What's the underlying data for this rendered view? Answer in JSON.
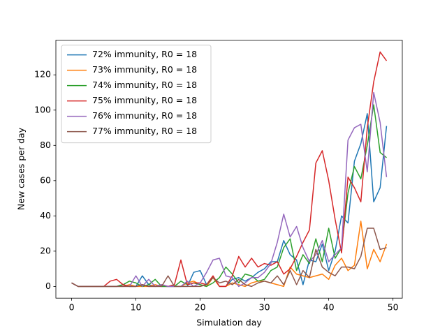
{
  "chart_data": {
    "type": "line",
    "xlabel": "Simulation day",
    "ylabel": "New cases per day",
    "x": [
      0,
      1,
      2,
      3,
      4,
      5,
      6,
      7,
      8,
      9,
      10,
      11,
      12,
      13,
      14,
      15,
      16,
      17,
      18,
      19,
      20,
      21,
      22,
      23,
      24,
      25,
      26,
      27,
      28,
      29,
      30,
      31,
      32,
      33,
      34,
      35,
      36,
      37,
      38,
      39,
      40,
      41,
      42,
      43,
      44,
      45,
      46,
      47,
      48,
      49
    ],
    "series": [
      {
        "name": "72% immunity, R0 = 18",
        "color": "#1f77b4",
        "values": [
          2,
          0,
          0,
          0,
          0,
          0,
          0,
          0,
          1,
          0,
          0,
          6,
          1,
          0,
          0,
          0,
          0,
          0,
          0,
          8,
          9,
          1,
          5,
          0,
          0,
          4,
          5,
          3,
          5,
          8,
          10,
          14,
          14,
          26,
          18,
          15,
          1,
          15,
          14,
          24,
          9,
          20,
          40,
          36,
          71,
          81,
          98,
          48,
          56,
          91
        ]
      },
      {
        "name": "73% immunity, R0 = 18",
        "color": "#ff7f0e",
        "values": [
          2,
          0,
          0,
          0,
          0,
          0,
          0,
          0,
          0,
          1,
          0,
          0,
          0,
          1,
          0,
          0,
          0,
          0,
          2,
          3,
          1,
          0,
          5,
          0,
          0,
          2,
          1,
          0,
          2,
          3,
          3,
          2,
          1,
          0,
          11,
          7,
          6,
          5,
          6,
          7,
          4,
          12,
          16,
          9,
          12,
          37,
          10,
          21,
          14,
          24
        ]
      },
      {
        "name": "74% immunity, R0 = 18",
        "color": "#2ca02c",
        "values": [
          2,
          0,
          0,
          0,
          0,
          0,
          0,
          0,
          1,
          3,
          2,
          0,
          1,
          4,
          0,
          0,
          0,
          3,
          1,
          2,
          1,
          0,
          2,
          5,
          11,
          7,
          2,
          7,
          6,
          3,
          4,
          9,
          11,
          22,
          27,
          9,
          18,
          13,
          27,
          14,
          33,
          16,
          22,
          53,
          68,
          61,
          80,
          103,
          76,
          73
        ]
      },
      {
        "name": "75% immunity, R0 = 18",
        "color": "#d62728",
        "values": [
          2,
          0,
          0,
          0,
          0,
          0,
          3,
          4,
          1,
          0,
          0,
          1,
          0,
          0,
          1,
          0,
          1,
          15,
          1,
          2,
          2,
          1,
          6,
          0,
          0,
          6,
          17,
          11,
          16,
          11,
          13,
          12,
          14,
          7,
          10,
          17,
          25,
          32,
          70,
          77,
          60,
          38,
          19,
          62,
          56,
          48,
          90,
          116,
          133,
          128
        ]
      },
      {
        "name": "76% immunity, R0 = 18",
        "color": "#9467bd",
        "values": [
          2,
          0,
          0,
          0,
          0,
          0,
          0,
          0,
          0,
          0,
          6,
          0,
          4,
          0,
          1,
          0,
          0,
          0,
          3,
          0,
          2,
          8,
          15,
          16,
          6,
          5,
          0,
          2,
          5,
          5,
          8,
          13,
          25,
          41,
          28,
          34,
          22,
          14,
          18,
          26,
          14,
          18,
          22,
          83,
          90,
          92,
          65,
          110,
          93,
          62
        ]
      },
      {
        "name": "77% immunity, R0 = 18",
        "color": "#8c564b",
        "values": [
          2,
          0,
          0,
          0,
          0,
          0,
          0,
          0,
          0,
          0,
          0,
          1,
          0,
          0,
          0,
          6,
          0,
          0,
          0,
          0,
          0,
          1,
          5,
          2,
          3,
          1,
          4,
          1,
          0,
          2,
          3,
          2,
          6,
          1,
          9,
          1,
          9,
          5,
          21,
          11,
          8,
          6,
          11,
          11,
          10,
          17,
          33,
          33,
          21,
          22
        ]
      }
    ],
    "xlim": [
      -2.45,
      51.45
    ],
    "ylim": [
      -6.65,
      139.65
    ],
    "xticks": [
      0,
      10,
      20,
      30,
      40,
      50
    ],
    "yticks": [
      0,
      20,
      40,
      60,
      80,
      100,
      120
    ],
    "legend": "upper left"
  }
}
